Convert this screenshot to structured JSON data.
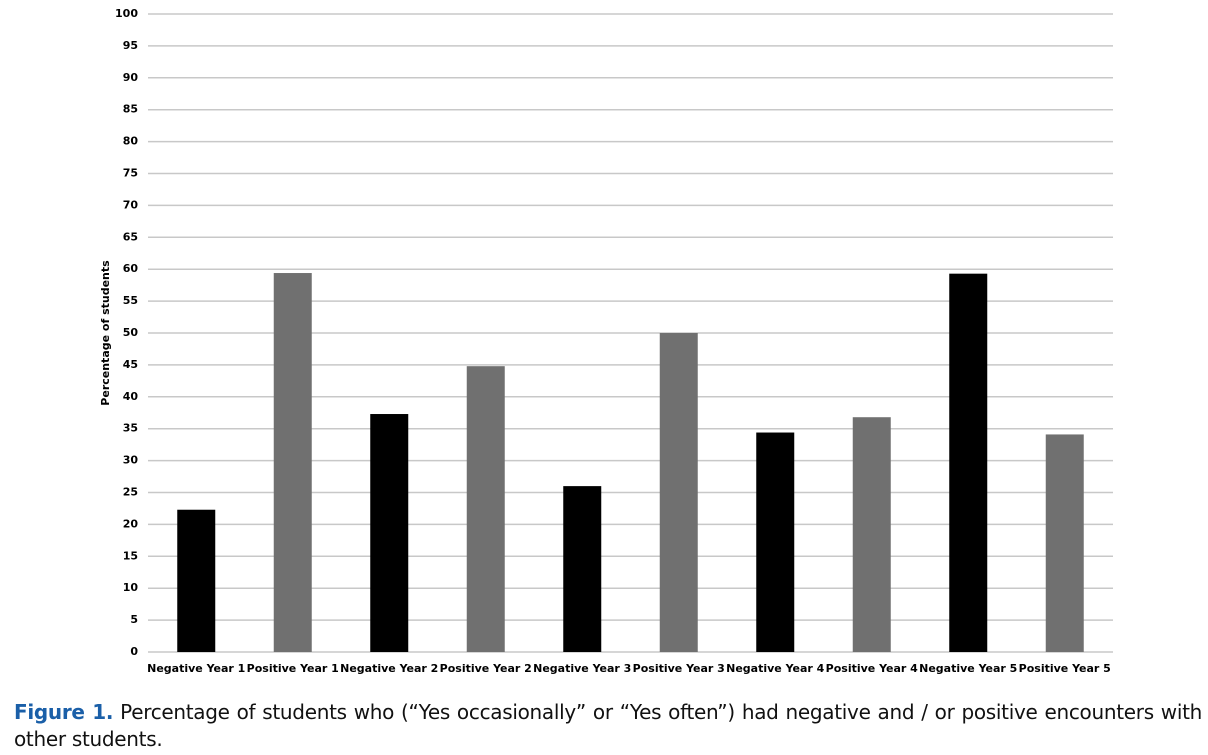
{
  "chart_data": {
    "type": "bar",
    "y_label": "Percentage of students",
    "categories": [
      "Negative Year 1",
      "Positive Year 1",
      "Negative Year 2",
      "Positive Year 2",
      "Negative Year 3",
      "Positive Year 3",
      "Negative Year 4",
      "Positive Year 4",
      "Negative Year 5",
      "Positive Year 5"
    ],
    "values": [
      22.3,
      59.4,
      37.3,
      44.8,
      26,
      50,
      34.4,
      36.8,
      59.3,
      34.1
    ],
    "colors": [
      "#000000",
      "#707070",
      "#000000",
      "#707070",
      "#000000",
      "#707070",
      "#000000",
      "#707070",
      "#000000",
      "#707070"
    ],
    "ylim": [
      0,
      100
    ],
    "yticks": [
      0,
      5,
      10,
      15,
      20,
      25,
      30,
      35,
      40,
      45,
      50,
      55,
      60,
      65,
      70,
      75,
      80,
      85,
      90,
      95,
      100
    ],
    "grid": true
  },
  "caption": {
    "label": "Figure 1.",
    "text": "Percentage of students who (“Yes occasionally” or “Yes often”) had negative and / or positive encounters with other students."
  }
}
